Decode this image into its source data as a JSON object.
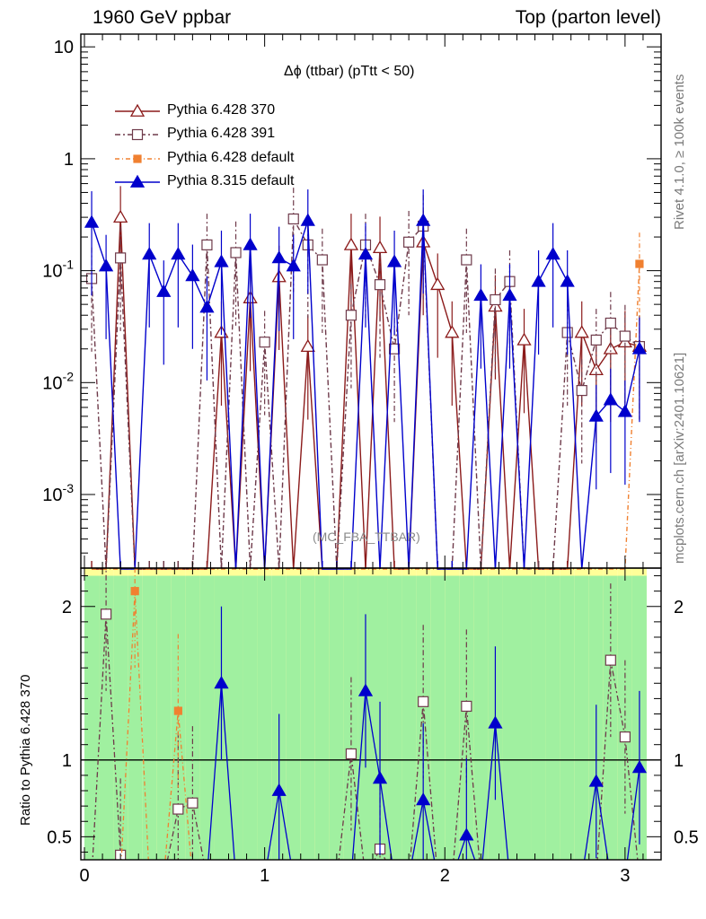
{
  "header": {
    "left": "1960 GeV ppbar",
    "right": "Top (parton level)"
  },
  "side_labels": {
    "rivet": "Rivet 4.1.0, ≥ 100k events",
    "mcplots": "mcplots.cern.ch [arXiv:2401.10621]"
  },
  "colors": {
    "p370": "#8b1a1a",
    "p391": "#6e3a4a",
    "pdef": "#f08030",
    "p8": "#0000cc",
    "band_green": "#a0f0a0",
    "band_yellow": "#ffff99"
  },
  "chart_data": [
    {
      "type": "line",
      "panel": "main",
      "title": "Δϕ (ttbar) (pTtt < 50)",
      "watermark": "(MC_FBA_TTBAR)",
      "xlabel": "",
      "ylabel": "",
      "yscale": "log",
      "xlim": [
        -0.02,
        3.2
      ],
      "ylim": [
        0.00022,
        13
      ],
      "y_tick_labels": [
        "10^-3",
        "10^-2",
        "10^-1",
        "1",
        "10"
      ],
      "x_tick_labels": [
        "0",
        "1",
        "2",
        "3"
      ],
      "x": [
        0.04,
        0.12,
        0.2,
        0.28,
        0.36,
        0.44,
        0.52,
        0.6,
        0.68,
        0.76,
        0.84,
        0.92,
        1.0,
        1.08,
        1.16,
        1.24,
        1.32,
        1.4,
        1.48,
        1.56,
        1.64,
        1.72,
        1.8,
        1.88,
        1.96,
        2.04,
        2.12,
        2.2,
        2.28,
        2.36,
        2.44,
        2.52,
        2.6,
        2.68,
        2.76,
        2.84,
        2.92,
        3.0,
        3.08
      ],
      "series": [
        {
          "name": "Pythia 6.428 370",
          "marker": "open-triangle",
          "values": [
            0,
            0,
            0.3,
            0,
            0,
            0,
            0,
            0,
            0,
            0.028,
            0,
            0.057,
            0,
            0.088,
            0,
            0.021,
            0,
            0,
            0.17,
            0,
            0.16,
            0,
            0,
            0.18,
            0.075,
            0.028,
            0,
            0,
            0.048,
            0,
            0.024,
            0,
            0,
            0,
            0.028,
            0.013,
            0.02,
            0.023,
            0.021
          ]
        },
        {
          "name": "Pythia 6.428 391",
          "marker": "open-square",
          "values": [
            0.085,
            0,
            0.13,
            0,
            0,
            0,
            0,
            0,
            0.17,
            0,
            0.145,
            0,
            0.023,
            0,
            0.29,
            0.17,
            0.125,
            0,
            0.04,
            0.17,
            0.075,
            0.02,
            0.18,
            0.25,
            0,
            0,
            0.125,
            0,
            0.055,
            0.08,
            0,
            0,
            0,
            0.028,
            0.0085,
            0.024,
            0.034,
            0.026,
            0.021
          ]
        },
        {
          "name": "Pythia 6.428 default",
          "marker": "filled-square",
          "values": [
            0,
            0,
            0,
            0,
            0,
            0,
            0,
            0,
            0,
            0,
            0,
            0,
            0,
            0,
            0,
            0,
            0,
            0,
            0,
            0,
            0,
            0,
            0,
            0,
            0,
            0,
            0,
            0,
            0,
            0,
            0,
            0,
            0,
            0,
            0,
            0,
            0,
            0,
            0.115
          ]
        },
        {
          "name": "Pythia 8.315 default",
          "marker": "filled-triangle",
          "values": [
            0.27,
            0.11,
            0,
            0,
            0.14,
            0.065,
            0.14,
            0.09,
            0.047,
            0.12,
            0,
            0.17,
            0,
            0.13,
            0.11,
            0.28,
            0,
            0,
            0,
            0.14,
            0,
            0.12,
            0,
            0.28,
            0,
            0,
            0,
            0.06,
            0,
            0.06,
            0,
            0.08,
            0.14,
            0.08,
            0,
            0.005,
            0.007,
            0.0055,
            0.02
          ]
        }
      ]
    },
    {
      "type": "line",
      "panel": "ratio",
      "xlabel": "",
      "ylabel": "Ratio to Pythia 6.428 370",
      "xlim": [
        -0.02,
        3.2
      ],
      "ylim": [
        0.35,
        2.25
      ],
      "y_tick_labels": [
        "0.5",
        "1",
        "2"
      ],
      "x_tick_labels": [
        "0",
        "1",
        "2",
        "3"
      ],
      "x": [
        0.04,
        0.12,
        0.2,
        0.28,
        0.36,
        0.44,
        0.52,
        0.6,
        0.68,
        0.76,
        0.84,
        0.92,
        1.0,
        1.08,
        1.16,
        1.24,
        1.32,
        1.4,
        1.48,
        1.56,
        1.64,
        1.72,
        1.8,
        1.88,
        1.96,
        2.04,
        2.12,
        2.2,
        2.28,
        2.36,
        2.44,
        2.52,
        2.6,
        2.68,
        2.76,
        2.84,
        2.92,
        3.0,
        3.08
      ],
      "band_green_half_width": 1.2,
      "series": [
        {
          "name": "Pythia 6.428 391",
          "values": [
            null,
            1.95,
            0.38,
            null,
            null,
            null,
            0.68,
            0.72,
            null,
            null,
            null,
            null,
            null,
            null,
            null,
            null,
            null,
            null,
            1.04,
            null,
            0.42,
            null,
            null,
            1.38,
            null,
            null,
            1.35,
            null,
            null,
            null,
            null,
            null,
            null,
            null,
            null,
            null,
            1.65,
            1.15,
            null
          ]
        },
        {
          "name": "Pythia 6.428 default",
          "values": [
            null,
            null,
            null,
            2.1,
            null,
            null,
            1.32,
            null,
            null,
            null,
            null,
            null,
            null,
            null,
            null,
            null,
            null,
            null,
            null,
            null,
            null,
            null,
            null,
            null,
            null,
            null,
            null,
            null,
            null,
            null,
            null,
            null,
            null,
            null,
            null,
            null,
            null,
            null,
            null
          ]
        },
        {
          "name": "Pythia 8.315 default",
          "values": [
            null,
            null,
            null,
            null,
            null,
            null,
            null,
            null,
            null,
            1.5,
            null,
            null,
            null,
            0.8,
            null,
            null,
            null,
            null,
            null,
            1.45,
            0.88,
            null,
            null,
            0.74,
            null,
            null,
            0.51,
            null,
            1.24,
            null,
            null,
            null,
            null,
            null,
            null,
            0.86,
            null,
            null,
            0.95
          ]
        }
      ]
    }
  ]
}
